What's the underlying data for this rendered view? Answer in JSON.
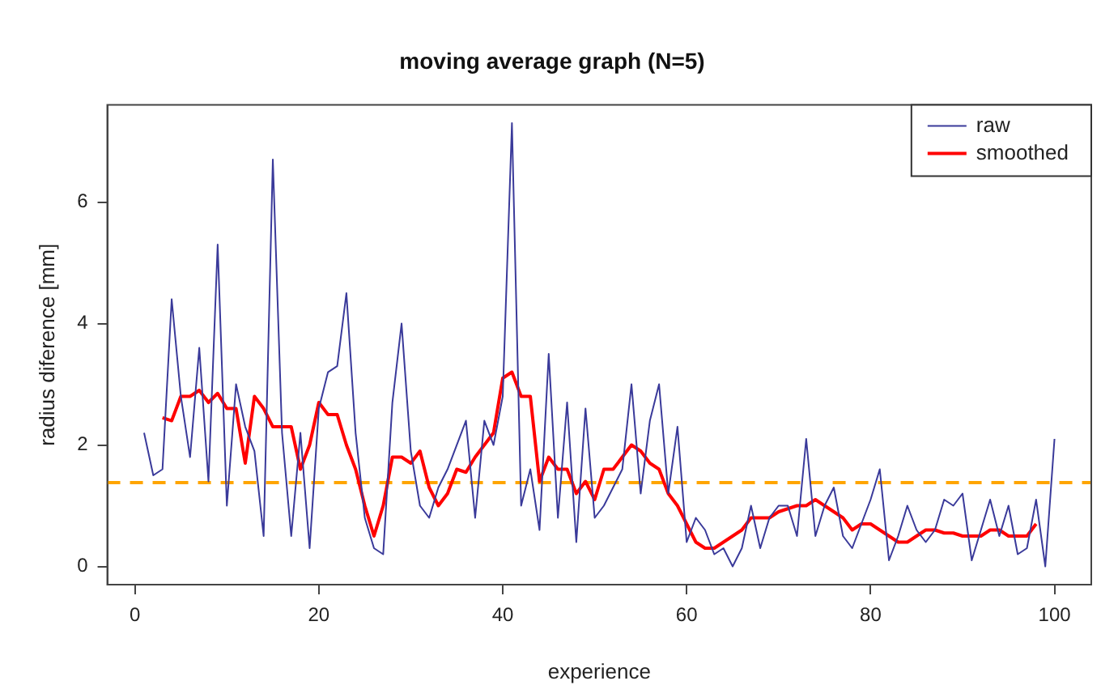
{
  "chart_data": {
    "type": "line",
    "title": "moving average graph (N=5)",
    "xlabel": "experience",
    "ylabel": "radius diference [mm]",
    "xlim": [
      -3,
      104
    ],
    "xticks": [
      0,
      20,
      40,
      60,
      80,
      100
    ],
    "ylim": [
      -0.3,
      7.6
    ],
    "yticks": [
      0,
      2,
      4,
      6
    ],
    "grid": false,
    "legend": "top right",
    "marker": "none",
    "series": [
      {
        "name": "raw",
        "color": "#3a3a9a",
        "x": [
          1,
          2,
          3,
          4,
          5,
          6,
          7,
          8,
          9,
          10,
          11,
          12,
          13,
          14,
          15,
          16,
          17,
          18,
          19,
          20,
          21,
          22,
          23,
          24,
          25,
          26,
          27,
          28,
          29,
          30,
          31,
          32,
          33,
          34,
          35,
          36,
          37,
          38,
          39,
          40,
          41,
          42,
          43,
          44,
          45,
          46,
          47,
          48,
          49,
          50,
          51,
          52,
          53,
          54,
          55,
          56,
          57,
          58,
          59,
          60,
          61,
          62,
          63,
          64,
          65,
          66,
          67,
          68,
          69,
          70,
          71,
          72,
          73,
          74,
          75,
          76,
          77,
          78,
          79,
          80,
          81,
          82,
          83,
          84,
          85,
          86,
          87,
          88,
          89,
          90,
          91,
          92,
          93,
          94,
          95,
          96,
          97,
          98,
          99,
          100
        ],
        "values": [
          2.2,
          1.5,
          1.6,
          4.4,
          2.8,
          1.8,
          3.6,
          1.4,
          5.3,
          1.0,
          3.0,
          2.3,
          1.9,
          0.5,
          6.7,
          2.2,
          0.5,
          2.2,
          0.3,
          2.6,
          3.2,
          3.3,
          4.5,
          2.2,
          0.8,
          0.3,
          0.2,
          2.7,
          4.0,
          1.9,
          1.0,
          0.8,
          1.3,
          1.6,
          2.0,
          2.4,
          0.8,
          2.4,
          2.0,
          2.8,
          7.3,
          1.0,
          1.6,
          0.6,
          3.5,
          0.8,
          2.7,
          0.4,
          2.6,
          0.8,
          1.0,
          1.3,
          1.6,
          3.0,
          1.2,
          2.4,
          3.0,
          1.2,
          2.3,
          0.4,
          0.8,
          0.6,
          0.2,
          0.3,
          0.0,
          0.3,
          1.0,
          0.3,
          0.8,
          1.0,
          1.0,
          0.5,
          2.1,
          0.5,
          1.0,
          1.3,
          0.5,
          0.3,
          0.7,
          1.1,
          1.6,
          0.1,
          0.5,
          1.0,
          0.6,
          0.4,
          0.6,
          1.1,
          1.0,
          1.2,
          0.1,
          0.6,
          1.1,
          0.5,
          1.0,
          0.2,
          0.3,
          1.1,
          0.0,
          2.1
        ]
      },
      {
        "name": "smoothed",
        "color": "#ff0000",
        "x": [
          3,
          4,
          5,
          6,
          7,
          8,
          9,
          10,
          11,
          12,
          13,
          14,
          15,
          16,
          17,
          18,
          19,
          20,
          21,
          22,
          23,
          24,
          25,
          26,
          27,
          28,
          29,
          30,
          31,
          32,
          33,
          34,
          35,
          36,
          37,
          38,
          39,
          40,
          41,
          42,
          43,
          44,
          45,
          46,
          47,
          48,
          49,
          50,
          51,
          52,
          53,
          54,
          55,
          56,
          57,
          58,
          59,
          60,
          61,
          62,
          63,
          64,
          65,
          66,
          67,
          68,
          69,
          70,
          71,
          72,
          73,
          74,
          75,
          76,
          77,
          78,
          79,
          80,
          81,
          82,
          83,
          84,
          85,
          86,
          87,
          88,
          89,
          90,
          91,
          92,
          93,
          94,
          95,
          96,
          97,
          98
        ],
        "values": [
          2.45,
          2.4,
          2.8,
          2.8,
          2.9,
          2.7,
          2.85,
          2.6,
          2.6,
          1.7,
          2.8,
          2.6,
          2.3,
          2.3,
          2.3,
          1.6,
          2.0,
          2.7,
          2.5,
          2.5,
          2.0,
          1.6,
          1.0,
          0.5,
          1.0,
          1.8,
          1.8,
          1.7,
          1.9,
          1.3,
          1.0,
          1.2,
          1.6,
          1.55,
          1.8,
          2.0,
          2.2,
          3.1,
          3.2,
          2.8,
          2.8,
          1.4,
          1.8,
          1.6,
          1.6,
          1.2,
          1.4,
          1.1,
          1.6,
          1.6,
          1.8,
          2.0,
          1.9,
          1.7,
          1.6,
          1.2,
          1.0,
          0.7,
          0.4,
          0.3,
          0.3,
          0.4,
          0.5,
          0.6,
          0.8,
          0.8,
          0.8,
          0.9,
          0.95,
          1.0,
          1.0,
          1.1,
          1.0,
          0.9,
          0.8,
          0.6,
          0.7,
          0.7,
          0.6,
          0.5,
          0.4,
          0.4,
          0.5,
          0.6,
          0.6,
          0.55,
          0.55,
          0.5,
          0.5,
          0.5,
          0.6,
          0.6,
          0.5,
          0.5,
          0.5,
          0.7
        ]
      }
    ],
    "ref_lines": [
      {
        "axis": "y",
        "value": 1.38,
        "color": "#ffa500",
        "line_style": "dashed"
      }
    ]
  }
}
